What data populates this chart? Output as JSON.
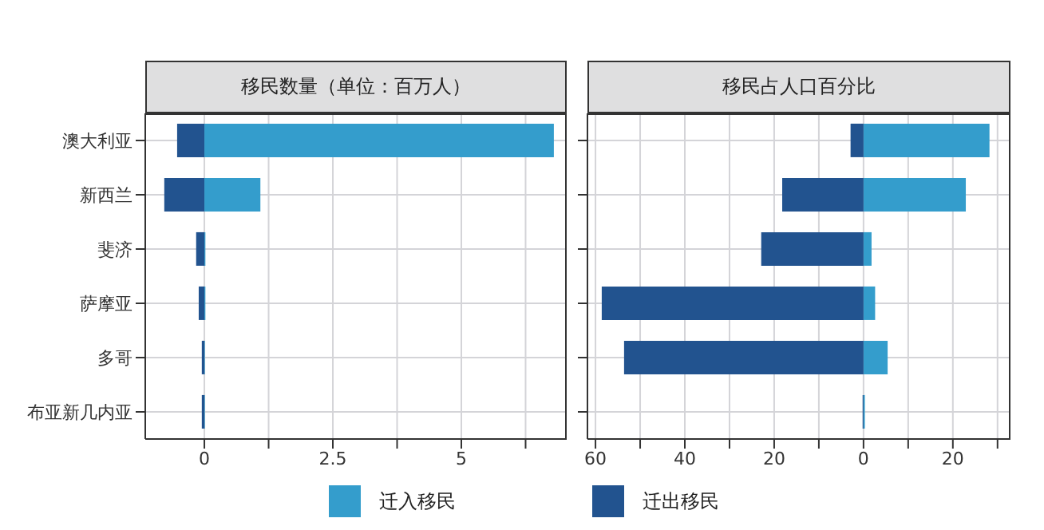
{
  "chart_data": [
    {
      "type": "bar",
      "orientation": "horizontal",
      "stacked": true,
      "title": "移民数量（单位：百万人）",
      "categories": [
        "澳大利亚",
        "新西兰",
        "斐济",
        "萨摩亚",
        "多哥",
        "布亚新几内亚"
      ],
      "series": [
        {
          "name": "迁入移民",
          "color": "#349dcc",
          "values": [
            6.8,
            1.09,
            0.02,
            0.02,
            0.01,
            0.01
          ]
        },
        {
          "name": "迁出移民",
          "color": "#22538f",
          "values": [
            -0.53,
            -0.78,
            -0.16,
            -0.11,
            -0.05,
            -0.05
          ]
        }
      ],
      "xlim": [
        -1.15,
        7.05
      ],
      "xticks": [
        0,
        {
          "value": 1.25,
          "label": null
        },
        2.5,
        {
          "value": 3.75,
          "label": null
        },
        5,
        {
          "value": 6.25,
          "label": null
        }
      ],
      "grid": true,
      "legend": "bottom"
    },
    {
      "type": "bar",
      "orientation": "horizontal",
      "stacked": true,
      "title": "移民占人口百分比",
      "categories": [
        null,
        null,
        null,
        null,
        null,
        null
      ],
      "series": [
        {
          "color": "#349dcc",
          "values": [
            28.2,
            22.9,
            1.8,
            2.6,
            5.4,
            0.3
          ]
        },
        {
          "color": "#22538f",
          "values": [
            -2.9,
            -18.2,
            -22.9,
            -58.6,
            -53.6,
            -0.2
          ]
        }
      ],
      "xlim": [
        -61.8,
        32.9
      ],
      "xticks": [
        {
          "value": -60,
          "label": "60"
        },
        {
          "value": -50,
          "label": null
        },
        {
          "value": -40,
          "label": "40"
        },
        {
          "value": -30,
          "label": null
        },
        {
          "value": -20,
          "label": "20"
        },
        {
          "value": -10,
          "label": null
        },
        0,
        {
          "value": 10,
          "label": null
        },
        {
          "value": 20,
          "label": "20"
        },
        {
          "value": 30,
          "label": null
        }
      ],
      "grid": true,
      "tick_labels": "x"
    }
  ]
}
